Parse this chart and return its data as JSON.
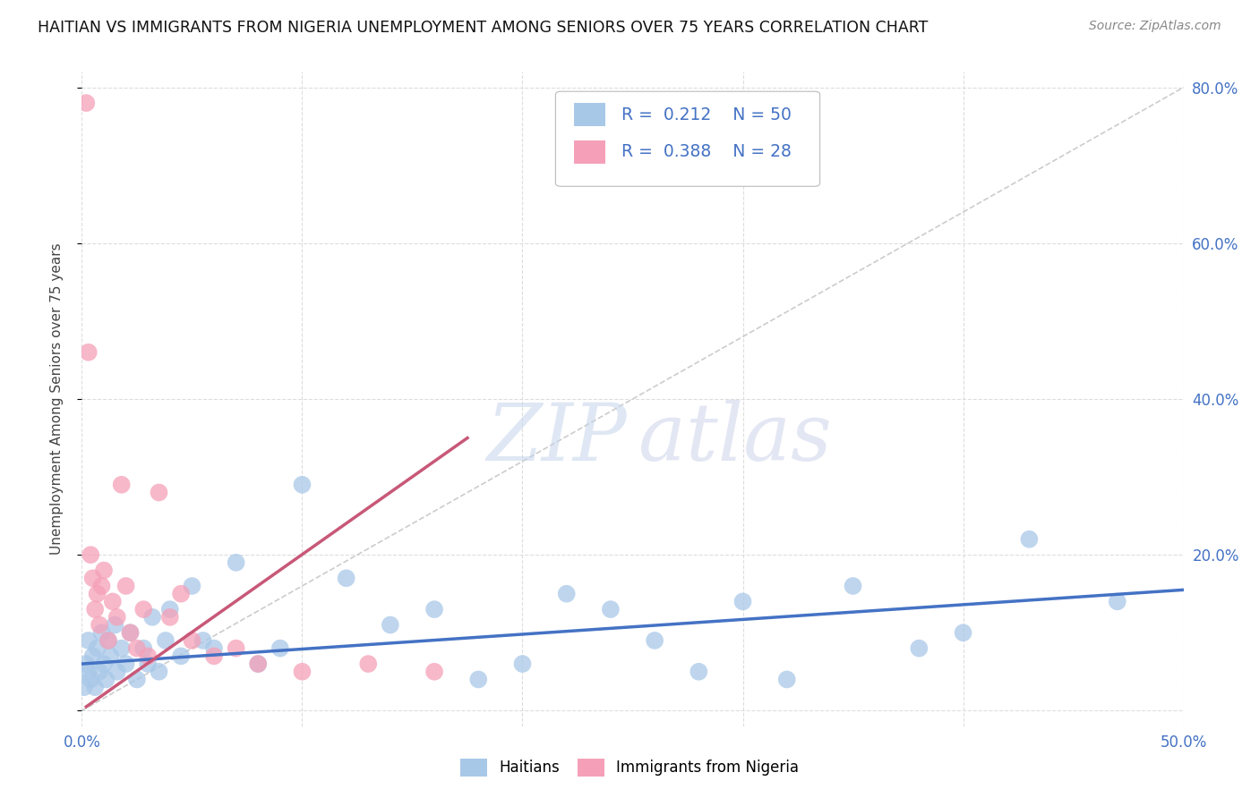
{
  "title": "HAITIAN VS IMMIGRANTS FROM NIGERIA UNEMPLOYMENT AMONG SENIORS OVER 75 YEARS CORRELATION CHART",
  "source": "Source: ZipAtlas.com",
  "ylabel": "Unemployment Among Seniors over 75 years",
  "R1": 0.212,
  "N1": 50,
  "R2": 0.388,
  "N2": 28,
  "color1": "#a8c8e8",
  "color2": "#f5a0b8",
  "line_color1": "#4472c4",
  "line_color2": "#c85878",
  "background_color": "#ffffff",
  "grid_color": "#dddddd",
  "xlim": [
    0.0,
    0.5
  ],
  "ylim": [
    -0.02,
    0.82
  ],
  "x_ticks": [
    0.0,
    0.1,
    0.2,
    0.3,
    0.4,
    0.5
  ],
  "y_ticks": [
    0.0,
    0.2,
    0.4,
    0.6,
    0.8
  ],
  "legend_label1": "Haitians",
  "legend_label2": "Immigrants from Nigeria",
  "haitians_x": [
    0.001,
    0.002,
    0.003,
    0.003,
    0.004,
    0.005,
    0.006,
    0.007,
    0.008,
    0.009,
    0.01,
    0.011,
    0.012,
    0.013,
    0.015,
    0.016,
    0.018,
    0.02,
    0.022,
    0.025,
    0.028,
    0.03,
    0.032,
    0.035,
    0.038,
    0.04,
    0.045,
    0.05,
    0.055,
    0.06,
    0.07,
    0.08,
    0.09,
    0.1,
    0.12,
    0.14,
    0.16,
    0.18,
    0.2,
    0.22,
    0.24,
    0.26,
    0.28,
    0.3,
    0.32,
    0.35,
    0.38,
    0.4,
    0.43,
    0.47
  ],
  "haitians_y": [
    0.03,
    0.06,
    0.05,
    0.09,
    0.04,
    0.07,
    0.03,
    0.08,
    0.05,
    0.1,
    0.06,
    0.04,
    0.09,
    0.07,
    0.11,
    0.05,
    0.08,
    0.06,
    0.1,
    0.04,
    0.08,
    0.06,
    0.12,
    0.05,
    0.09,
    0.13,
    0.07,
    0.16,
    0.09,
    0.08,
    0.19,
    0.06,
    0.08,
    0.29,
    0.17,
    0.11,
    0.13,
    0.04,
    0.06,
    0.15,
    0.13,
    0.09,
    0.05,
    0.14,
    0.04,
    0.16,
    0.08,
    0.1,
    0.22,
    0.14
  ],
  "nigeria_x": [
    0.002,
    0.003,
    0.004,
    0.005,
    0.006,
    0.007,
    0.008,
    0.009,
    0.01,
    0.012,
    0.014,
    0.016,
    0.018,
    0.02,
    0.022,
    0.025,
    0.028,
    0.03,
    0.035,
    0.04,
    0.045,
    0.05,
    0.06,
    0.07,
    0.08,
    0.1,
    0.13,
    0.16
  ],
  "nigeria_y": [
    0.78,
    0.46,
    0.2,
    0.17,
    0.13,
    0.15,
    0.11,
    0.16,
    0.18,
    0.09,
    0.14,
    0.12,
    0.29,
    0.16,
    0.1,
    0.08,
    0.13,
    0.07,
    0.28,
    0.12,
    0.15,
    0.09,
    0.07,
    0.08,
    0.06,
    0.05,
    0.06,
    0.05
  ],
  "blue_line_x": [
    0.0,
    0.5
  ],
  "blue_line_y": [
    0.06,
    0.155
  ],
  "pink_line_x": [
    0.002,
    0.175
  ],
  "pink_line_y": [
    0.005,
    0.35
  ]
}
